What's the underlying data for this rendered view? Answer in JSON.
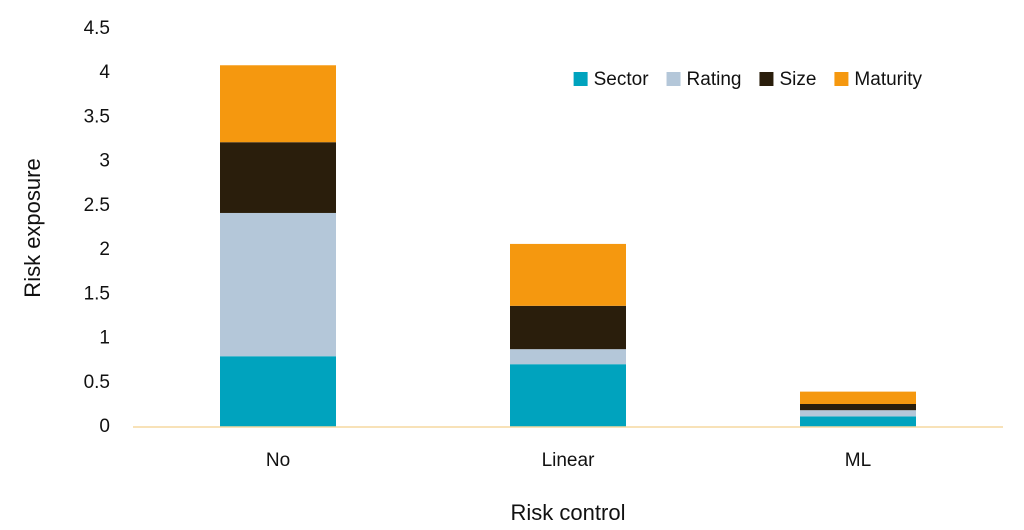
{
  "chart_data": {
    "type": "stacked_bar",
    "x_label": "Risk control",
    "y_label": "Risk exposure",
    "categories": [
      "No",
      "Linear",
      "ML"
    ],
    "series": [
      {
        "name": "Sector",
        "color": "#00a3be",
        "values": [
          0.8,
          0.71,
          0.12
        ]
      },
      {
        "name": "Rating",
        "color": "#b4c7d9",
        "values": [
          1.62,
          0.17,
          0.07
        ]
      },
      {
        "name": "Size",
        "color": "#2a1e0c",
        "values": [
          0.8,
          0.49,
          0.07
        ]
      },
      {
        "name": "Maturity",
        "color": "#f5980f",
        "values": [
          0.87,
          0.7,
          0.14
        ]
      }
    ],
    "ylim": [
      0,
      4.5
    ],
    "yticks": [
      0,
      0.5,
      1,
      1.5,
      2,
      2.5,
      3,
      3.5,
      4,
      4.5
    ],
    "grid": false,
    "legend": "upper right"
  }
}
